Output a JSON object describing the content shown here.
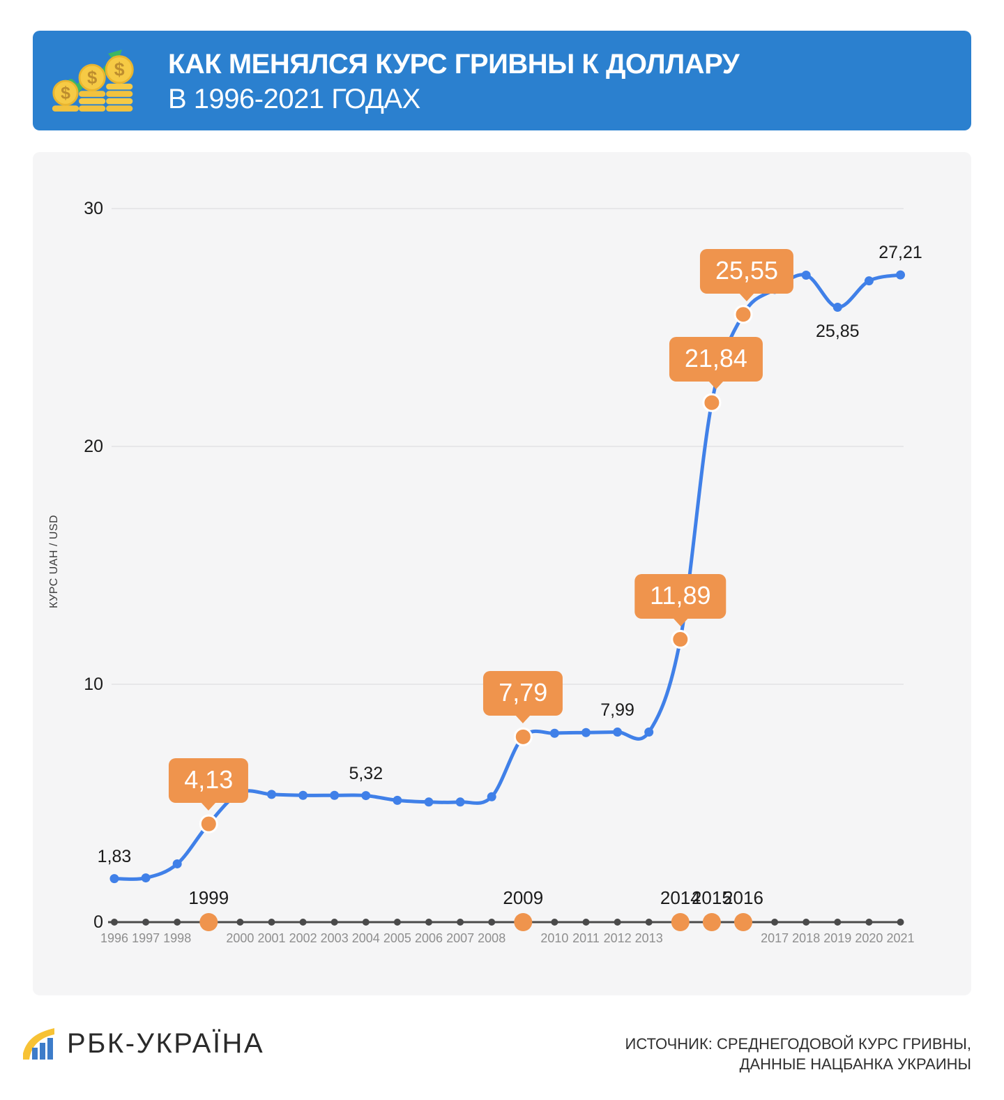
{
  "colors": {
    "header_bg": "#2b80cf",
    "card_bg": "#f5f5f6",
    "grid": "#e7e7e9",
    "axis": "#4a4a4a",
    "line_blue": "#4080e8",
    "accent_orange": "#ef944d",
    "year_gray": "#8e8e8e",
    "coin_yellow": "#f6ca45",
    "arrow_green": "#3db663",
    "logo_yellow": "#f7c235",
    "logo_blue": "#3d7cc9"
  },
  "header": {
    "title_line1": "КАК МЕНЯЛСЯ КУРС ГРИВНЫ К ДОЛЛАРУ",
    "title_line2": "В 1996-2021 ГОДАХ",
    "icon": "coins-growth-icon"
  },
  "chart_data": {
    "type": "line",
    "ylabel": "КУРС UAH / USD",
    "xlabel": "",
    "x": [
      1996,
      1997,
      1998,
      1999,
      2000,
      2001,
      2002,
      2003,
      2004,
      2005,
      2006,
      2007,
      2008,
      2009,
      2010,
      2011,
      2012,
      2013,
      2014,
      2015,
      2016,
      2017,
      2018,
      2019,
      2020,
      2021
    ],
    "values": [
      1.83,
      1.86,
      2.45,
      4.13,
      5.44,
      5.37,
      5.33,
      5.33,
      5.32,
      5.12,
      5.05,
      5.05,
      5.27,
      7.79,
      7.94,
      7.97,
      7.99,
      7.99,
      11.89,
      21.84,
      25.55,
      26.6,
      27.2,
      25.85,
      26.96,
      27.21
    ],
    "ylim": [
      0,
      30
    ],
    "yticks": [
      0,
      10,
      20,
      30
    ],
    "grid": "horizontal",
    "legend": "none",
    "highlighted_years": [
      1999,
      2009,
      2014,
      2015,
      2016
    ],
    "callouts": [
      {
        "year": 1999,
        "label": "4,13",
        "dx": 0
      },
      {
        "year": 2009,
        "label": "7,79",
        "dx": 0
      },
      {
        "year": 2014,
        "label": "11,89",
        "dx": 0
      },
      {
        "year": 2015,
        "label": "21,84",
        "dx": 6
      },
      {
        "year": 2016,
        "label": "25,55",
        "dx": 5
      }
    ],
    "point_labels": [
      {
        "year": 1996,
        "label": "1,83",
        "position": "above"
      },
      {
        "year": 2004,
        "label": "5,32",
        "position": "above"
      },
      {
        "year": 2012,
        "label": "7,99",
        "position": "above"
      },
      {
        "year": 2019,
        "label": "25,85",
        "position": "below"
      },
      {
        "year": 2021,
        "label": "27,21",
        "position": "above"
      }
    ]
  },
  "footer": {
    "brand": "РБК-УКРАЇНА",
    "source_line1": "ИСТОЧНИК: СРЕДНЕГОДОВОЙ КУРС ГРИВНЫ,",
    "source_line2": "ДАННЫЕ НАЦБАНКА УКРАИНЫ"
  }
}
